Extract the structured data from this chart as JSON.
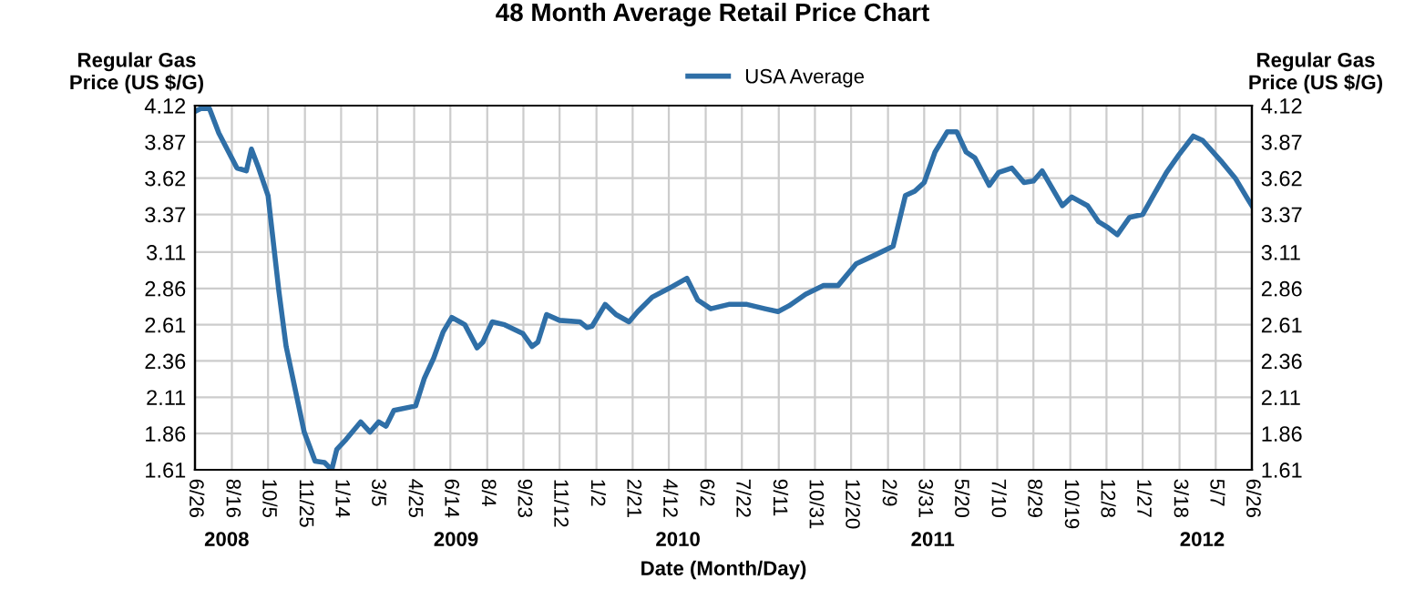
{
  "chart_data": {
    "type": "line",
    "title": "48 Month Average Retail Price Chart",
    "xlabel": "Date (Month/Day)",
    "ylabel": "Regular Gas\nPrice (US $/G)",
    "y2label": "Regular Gas\nPrice (US $/G)",
    "x": [
      "2008-06-26",
      "2008-07-04",
      "2008-07-16",
      "2008-07-29",
      "2008-08-23",
      "2008-09-05",
      "2008-09-12",
      "2008-09-22",
      "2008-10-05",
      "2008-10-20",
      "2008-10-30",
      "2008-11-24",
      "2008-12-09",
      "2008-12-22",
      "2009-01-01",
      "2009-01-08",
      "2009-01-21",
      "2009-02-10",
      "2009-02-23",
      "2009-03-07",
      "2009-03-17",
      "2009-03-28",
      "2009-04-27",
      "2009-05-09",
      "2009-05-22",
      "2009-06-04",
      "2009-06-16",
      "2009-07-04",
      "2009-07-21",
      "2009-07-29",
      "2009-08-11",
      "2009-08-28",
      "2009-09-22",
      "2009-10-05",
      "2009-10-13",
      "2009-10-25",
      "2009-11-12",
      "2009-12-10",
      "2009-12-20",
      "2009-12-27",
      "2010-01-14",
      "2010-01-29",
      "2010-02-16",
      "2010-02-28",
      "2010-03-20",
      "2010-04-12",
      "2010-05-07",
      "2010-05-22",
      "2010-06-09",
      "2010-07-04",
      "2010-07-29",
      "2010-08-23",
      "2010-09-10",
      "2010-09-25",
      "2010-10-18",
      "2010-11-12",
      "2010-12-02",
      "2010-12-27",
      "2011-01-22",
      "2011-02-16",
      "2011-03-05",
      "2011-03-18",
      "2011-03-31",
      "2011-04-15",
      "2011-05-02",
      "2011-05-15",
      "2011-05-28",
      "2011-06-09",
      "2011-06-29",
      "2011-07-12",
      "2011-07-30",
      "2011-08-16",
      "2011-08-29",
      "2011-09-10",
      "2011-10-08",
      "2011-10-21",
      "2011-11-12",
      "2011-11-27",
      "2011-12-10",
      "2011-12-23",
      "2012-01-09",
      "2012-01-27",
      "2012-02-29",
      "2012-03-17",
      "2012-04-06",
      "2012-04-19",
      "2012-05-14",
      "2012-06-03",
      "2012-06-21",
      "2012-06-26"
    ],
    "series": [
      {
        "name": "USA Average",
        "color": "#2f6fa7",
        "values": [
          4.08,
          4.1,
          4.1,
          3.93,
          3.69,
          3.67,
          3.82,
          3.69,
          3.5,
          2.84,
          2.46,
          1.87,
          1.67,
          1.66,
          1.61,
          1.75,
          1.82,
          1.94,
          1.87,
          1.94,
          1.91,
          2.02,
          2.05,
          2.24,
          2.38,
          2.56,
          2.66,
          2.61,
          2.45,
          2.49,
          2.63,
          2.61,
          2.55,
          2.46,
          2.49,
          2.68,
          2.64,
          2.63,
          2.59,
          2.6,
          2.75,
          2.68,
          2.63,
          2.7,
          2.8,
          2.86,
          2.93,
          2.78,
          2.72,
          2.75,
          2.75,
          2.72,
          2.7,
          2.74,
          2.82,
          2.88,
          2.88,
          3.03,
          3.09,
          3.15,
          3.5,
          3.53,
          3.59,
          3.8,
          3.94,
          3.94,
          3.8,
          3.76,
          3.57,
          3.66,
          3.69,
          3.59,
          3.6,
          3.67,
          3.43,
          3.49,
          3.43,
          3.32,
          3.28,
          3.23,
          3.35,
          3.37,
          3.66,
          3.78,
          3.91,
          3.88,
          3.74,
          3.62,
          3.47,
          3.43
        ]
      }
    ],
    "xlim": [
      "2008-06-26",
      "2012-06-26"
    ],
    "xticks": [
      {
        "value": "2008-06-26",
        "label": "6/26"
      },
      {
        "value": "2008-08-16",
        "label": "8/16"
      },
      {
        "value": "2008-10-05",
        "label": "10/5"
      },
      {
        "value": "2008-11-25",
        "label": "11/25"
      },
      {
        "value": "2009-01-14",
        "label": "1/14"
      },
      {
        "value": "2009-03-05",
        "label": "3/5"
      },
      {
        "value": "2009-04-25",
        "label": "4/25"
      },
      {
        "value": "2009-06-14",
        "label": "6/14"
      },
      {
        "value": "2009-08-04",
        "label": "8/4"
      },
      {
        "value": "2009-09-23",
        "label": "9/23"
      },
      {
        "value": "2009-11-12",
        "label": "11/12"
      },
      {
        "value": "2010-01-02",
        "label": "1/2"
      },
      {
        "value": "2010-02-21",
        "label": "2/21"
      },
      {
        "value": "2010-04-12",
        "label": "4/12"
      },
      {
        "value": "2010-06-02",
        "label": "6/2"
      },
      {
        "value": "2010-07-22",
        "label": "7/22"
      },
      {
        "value": "2010-09-11",
        "label": "9/11"
      },
      {
        "value": "2010-10-31",
        "label": "10/31"
      },
      {
        "value": "2010-12-20",
        "label": "12/20"
      },
      {
        "value": "2011-02-09",
        "label": "2/9"
      },
      {
        "value": "2011-03-31",
        "label": "3/31"
      },
      {
        "value": "2011-05-20",
        "label": "5/20"
      },
      {
        "value": "2011-07-10",
        "label": "7/10"
      },
      {
        "value": "2011-08-29",
        "label": "8/29"
      },
      {
        "value": "2011-10-19",
        "label": "10/19"
      },
      {
        "value": "2011-12-08",
        "label": "12/8"
      },
      {
        "value": "2012-01-27",
        "label": "1/27"
      },
      {
        "value": "2012-03-18",
        "label": "3/18"
      },
      {
        "value": "2012-05-07",
        "label": "5/7"
      },
      {
        "value": "2012-06-26",
        "label": "6/26"
      }
    ],
    "ylim": [
      1.61,
      4.12
    ],
    "yticks": [
      1.61,
      1.86,
      2.11,
      2.36,
      2.61,
      2.86,
      3.11,
      3.37,
      3.62,
      3.87,
      4.12
    ],
    "y2lim": [
      1.61,
      4.12
    ],
    "y2ticks": [
      1.61,
      1.86,
      2.11,
      2.36,
      2.61,
      2.86,
      3.11,
      3.37,
      3.62,
      3.87,
      4.12
    ],
    "annotations": [
      "2008",
      "2009",
      "2010",
      "2011",
      "2012"
    ],
    "grid": true,
    "legend": "top",
    "marker": "none",
    "line_style": "solid"
  }
}
